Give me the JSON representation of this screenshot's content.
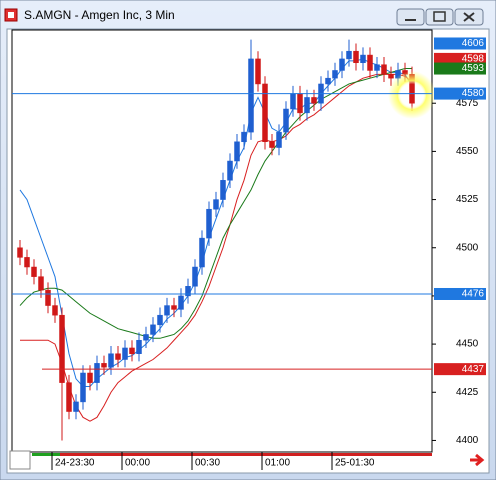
{
  "chart_data": {
    "type": "candlestick",
    "title": "S.AMGN - Amgen Inc, 3 Min",
    "categories": [
      null,
      null,
      null,
      null,
      null,
      "24-23:30",
      null,
      null,
      null,
      null,
      null,
      null,
      null,
      null,
      null,
      "00:00",
      null,
      null,
      null,
      null,
      null,
      null,
      null,
      null,
      null,
      "00:30",
      null,
      null,
      null,
      null,
      null,
      null,
      null,
      null,
      null,
      "01:00",
      null,
      null,
      null,
      null,
      null,
      null,
      null,
      null,
      null,
      "25-01:30",
      null,
      null,
      null,
      null,
      null,
      null,
      null,
      null,
      null,
      null,
      null
    ],
    "open": [
      4500,
      4495,
      4490,
      4485,
      4478,
      4470,
      4465,
      4430,
      4415,
      4420,
      4435,
      4430,
      4440,
      4438,
      4445,
      4442,
      4448,
      4445,
      4452,
      4455,
      4460,
      4465,
      4470,
      4468,
      4475,
      4480,
      4490,
      4505,
      4520,
      4525,
      4535,
      4545,
      4555,
      4560,
      4598,
      4585,
      4555,
      4552,
      4560,
      4572,
      4580,
      4570,
      4578,
      4575,
      4585,
      4588,
      4592,
      4598,
      4602,
      4596,
      4600,
      4592,
      4595,
      4590,
      4588,
      4592,
      4590
    ],
    "high": [
      4504,
      4499,
      4494,
      4489,
      4482,
      4474,
      4469,
      4434,
      4424,
      4439,
      4439,
      4444,
      4444,
      4449,
      4449,
      4452,
      4452,
      4456,
      4459,
      4464,
      4469,
      4474,
      4474,
      4479,
      4484,
      4494,
      4509,
      4524,
      4529,
      4539,
      4549,
      4559,
      4564,
      4608,
      4602,
      4589,
      4559,
      4564,
      4576,
      4584,
      4584,
      4582,
      4582,
      4589,
      4592,
      4596,
      4602,
      4608,
      4606,
      4604,
      4604,
      4599,
      4599,
      4594,
      4596,
      4596,
      4594
    ],
    "low": [
      4491,
      4486,
      4481,
      4474,
      4466,
      4461,
      4400,
      4411,
      4411,
      4416,
      4426,
      4426,
      4434,
      4434,
      4438,
      4438,
      4441,
      4441,
      4448,
      4451,
      4456,
      4461,
      4464,
      4464,
      4471,
      4476,
      4486,
      4501,
      4516,
      4521,
      4531,
      4541,
      4551,
      4556,
      4581,
      4551,
      4548,
      4548,
      4556,
      4568,
      4566,
      4566,
      4571,
      4571,
      4581,
      4584,
      4588,
      4594,
      4592,
      4592,
      4588,
      4588,
      4586,
      4584,
      4584,
      4586,
      4571
    ],
    "close": [
      4495,
      4490,
      4485,
      4478,
      4470,
      4465,
      4430,
      4415,
      4420,
      4435,
      4430,
      4440,
      4438,
      4445,
      4442,
      4448,
      4445,
      4452,
      4455,
      4460,
      4465,
      4470,
      4468,
      4475,
      4480,
      4490,
      4505,
      4520,
      4525,
      4535,
      4545,
      4555,
      4560,
      4598,
      4585,
      4555,
      4552,
      4560,
      4572,
      4580,
      4570,
      4578,
      4575,
      4585,
      4588,
      4592,
      4598,
      4602,
      4596,
      4600,
      4592,
      4595,
      4590,
      4588,
      4592,
      4590,
      4575
    ],
    "up_color": "#1f5fd0",
    "down_color": "#d01818",
    "series": [
      {
        "color": "#1f78e0",
        "values": [
          4530,
          4525,
          4515,
          4505,
          4495,
          4485,
          4465,
          4445,
          4432,
          4428,
          4428,
          4432,
          4435,
          4438,
          4440,
          4443,
          4444,
          4447,
          4450,
          4454,
          4458,
          4463,
          4466,
          4470,
          4475,
          4482,
          4492,
          4505,
          4515,
          4525,
          4535,
          4545,
          4552,
          4570,
          4578,
          4570,
          4562,
          4560,
          4565,
          4572,
          4572,
          4575,
          4575,
          4580,
          4584,
          4588,
          4593,
          4597,
          4597,
          4598,
          4596,
          4595,
          4593,
          4591,
          4591,
          4590,
          4584
        ]
      },
      {
        "color": "#d82020",
        "values": [
          4452,
          4452,
          4452,
          4452,
          4452,
          4450,
          4440,
          4428,
          4418,
          4412,
          4410,
          4412,
          4418,
          4425,
          4430,
          4433,
          4436,
          4438,
          4440,
          4442,
          4445,
          4448,
          4452,
          4456,
          4460,
          4465,
          4472,
          4480,
          4490,
          4500,
          4512,
          4525,
          4535,
          4548,
          4555,
          4556,
          4555,
          4556,
          4558,
          4562,
          4564,
          4567,
          4569,
          4572,
          4575,
          4578,
          4581,
          4584,
          4586,
          4588,
          4589,
          4590,
          4590,
          4590,
          4590,
          4589,
          4586
        ]
      },
      {
        "color": "#1a7a1a",
        "values": [
          4470,
          4474,
          4477,
          4478,
          4479,
          4479,
          4478,
          4475,
          4472,
          4469,
          4466,
          4464,
          4462,
          4460,
          4458,
          4457,
          4456,
          4455,
          4454,
          4453,
          4453,
          4454,
          4455,
          4458,
          4462,
          4468,
          4475,
          4485,
          4495,
          4505,
          4512,
          4518,
          4524,
          4530,
          4538,
          4545,
          4550,
          4555,
          4560,
          4564,
          4568,
          4571,
          4574,
          4577,
          4579,
          4581,
          4583,
          4585,
          4586,
          4587,
          4588,
          4589,
          4590,
          4591,
          4592,
          4593,
          4593
        ]
      }
    ],
    "hlines": [
      {
        "value": 4580,
        "color": "#1f78e0"
      },
      {
        "value": 4476,
        "color": "#1f78e0"
      },
      {
        "value": 4437,
        "color": "#d82020"
      }
    ],
    "tags": [
      {
        "value": 4606,
        "color": "#1f78e0"
      },
      {
        "value": 4598,
        "color": "#d82020"
      },
      {
        "value": 4593,
        "color": "#1a7a1a"
      }
    ],
    "ylim": [
      4394,
      4613
    ],
    "yticks": [
      4400,
      4425,
      4450,
      4475,
      4500,
      4525,
      4550,
      4575
    ]
  }
}
